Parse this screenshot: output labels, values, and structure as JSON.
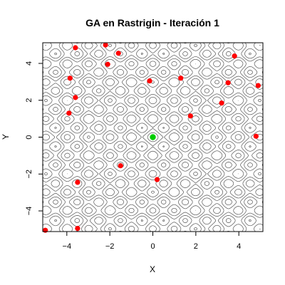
{
  "chart_data": {
    "type": "scatter",
    "title": "GA en Rastrigin - Iteración 1",
    "xlabel": "X",
    "ylabel": "Y",
    "xlim": [
      -5.12,
      5.12
    ],
    "ylim": [
      -5.12,
      5.12
    ],
    "xticks": [
      -4,
      -2,
      0,
      2,
      4
    ],
    "yticks": [
      -4,
      -2,
      0,
      2,
      4
    ],
    "background": "contour",
    "series": [
      {
        "color": "#ff0000",
        "points": [
          {
            "x": -3.6,
            "y": 4.85
          },
          {
            "x": -2.2,
            "y": 5.0
          },
          {
            "x": -1.6,
            "y": 4.55
          },
          {
            "x": -2.1,
            "y": 3.95
          },
          {
            "x": -3.85,
            "y": 3.2
          },
          {
            "x": -3.6,
            "y": 2.15
          },
          {
            "x": -3.9,
            "y": 1.3
          },
          {
            "x": -0.15,
            "y": 3.05
          },
          {
            "x": 1.3,
            "y": 3.2
          },
          {
            "x": 3.8,
            "y": 4.4
          },
          {
            "x": 3.5,
            "y": 2.95
          },
          {
            "x": 4.9,
            "y": 2.8
          },
          {
            "x": 3.2,
            "y": 1.85
          },
          {
            "x": 1.75,
            "y": 1.15
          },
          {
            "x": 4.8,
            "y": 0.05
          },
          {
            "x": -1.5,
            "y": -1.55
          },
          {
            "x": 0.2,
            "y": -2.3
          },
          {
            "x": -3.5,
            "y": -2.45
          },
          {
            "x": -3.5,
            "y": -4.95
          },
          {
            "x": -5.0,
            "y": -5.05
          }
        ]
      },
      {
        "color": "#00cc00",
        "points": [
          {
            "x": 0.0,
            "y": 0.0
          }
        ]
      }
    ]
  }
}
